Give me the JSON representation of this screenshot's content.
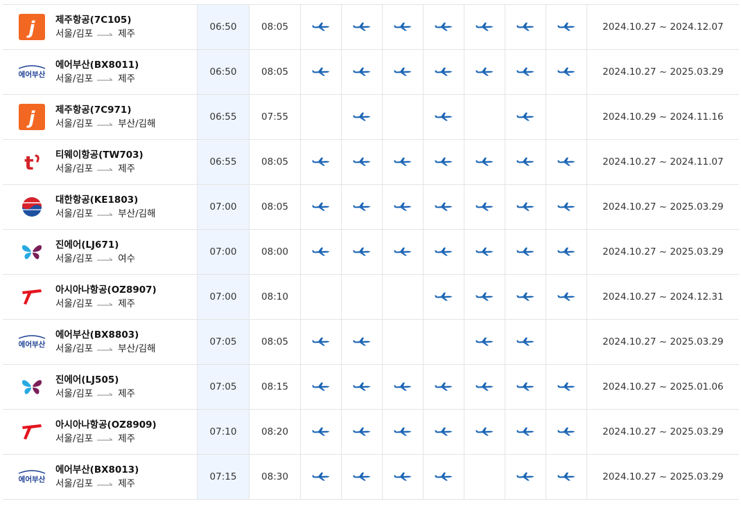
{
  "colors": {
    "plane": "#1a64b4",
    "dep_col_bg": "#eef5fe",
    "border": "#e4e4e4"
  },
  "rows": [
    {
      "airline": "제주항공(7C105)",
      "logo": "jejuair",
      "from": "서울/김포",
      "to": "제주",
      "dep": "06:50",
      "arr": "08:05",
      "days": [
        true,
        true,
        true,
        true,
        true,
        true,
        true
      ],
      "period": "2024.10.27 ~ 2024.12.07"
    },
    {
      "airline": "에어부산(BX8011)",
      "logo": "airbusan",
      "from": "서울/김포",
      "to": "제주",
      "dep": "06:50",
      "arr": "08:05",
      "days": [
        true,
        true,
        true,
        true,
        true,
        true,
        true
      ],
      "period": "2024.10.27 ~ 2025.03.29"
    },
    {
      "airline": "제주항공(7C971)",
      "logo": "jejuair",
      "from": "서울/김포",
      "to": "부산/김해",
      "dep": "06:55",
      "arr": "07:55",
      "days": [
        false,
        true,
        false,
        true,
        false,
        true,
        false
      ],
      "period": "2024.10.29 ~ 2024.11.16"
    },
    {
      "airline": "티웨이항공(TW703)",
      "logo": "tway",
      "from": "서울/김포",
      "to": "제주",
      "dep": "06:55",
      "arr": "08:05",
      "days": [
        true,
        true,
        true,
        true,
        true,
        true,
        true
      ],
      "period": "2024.10.27 ~ 2024.11.07"
    },
    {
      "airline": "대한항공(KE1803)",
      "logo": "koreanair",
      "from": "서울/김포",
      "to": "부산/김해",
      "dep": "07:00",
      "arr": "08:05",
      "days": [
        true,
        true,
        true,
        true,
        true,
        true,
        true
      ],
      "period": "2024.10.27 ~ 2025.03.29"
    },
    {
      "airline": "진에어(LJ671)",
      "logo": "jinair",
      "from": "서울/김포",
      "to": "여수",
      "dep": "07:00",
      "arr": "08:00",
      "days": [
        true,
        true,
        true,
        true,
        true,
        true,
        true
      ],
      "period": "2024.10.27 ~ 2025.03.29"
    },
    {
      "airline": "아시아나항공(OZ8907)",
      "logo": "asiana",
      "from": "서울/김포",
      "to": "제주",
      "dep": "07:00",
      "arr": "08:10",
      "days": [
        false,
        false,
        false,
        true,
        true,
        true,
        true
      ],
      "period": "2024.10.27 ~ 2024.12.31"
    },
    {
      "airline": "에어부산(BX8803)",
      "logo": "airbusan",
      "from": "서울/김포",
      "to": "부산/김해",
      "dep": "07:05",
      "arr": "08:05",
      "days": [
        true,
        true,
        false,
        false,
        true,
        true,
        false
      ],
      "period": "2024.10.27 ~ 2025.03.29"
    },
    {
      "airline": "진에어(LJ505)",
      "logo": "jinair",
      "from": "서울/김포",
      "to": "제주",
      "dep": "07:05",
      "arr": "08:15",
      "days": [
        true,
        true,
        true,
        true,
        true,
        true,
        true
      ],
      "period": "2024.10.27 ~ 2025.01.06"
    },
    {
      "airline": "아시아나항공(OZ8909)",
      "logo": "asiana",
      "from": "서울/김포",
      "to": "제주",
      "dep": "07:10",
      "arr": "08:20",
      "days": [
        true,
        true,
        true,
        true,
        true,
        true,
        true
      ],
      "period": "2024.10.27 ~ 2025.03.29"
    },
    {
      "airline": "에어부산(BX8013)",
      "logo": "airbusan",
      "from": "서울/김포",
      "to": "제주",
      "dep": "07:15",
      "arr": "08:30",
      "days": [
        true,
        true,
        true,
        true,
        false,
        true,
        true
      ],
      "period": "2024.10.27 ~ 2025.03.29"
    }
  ]
}
